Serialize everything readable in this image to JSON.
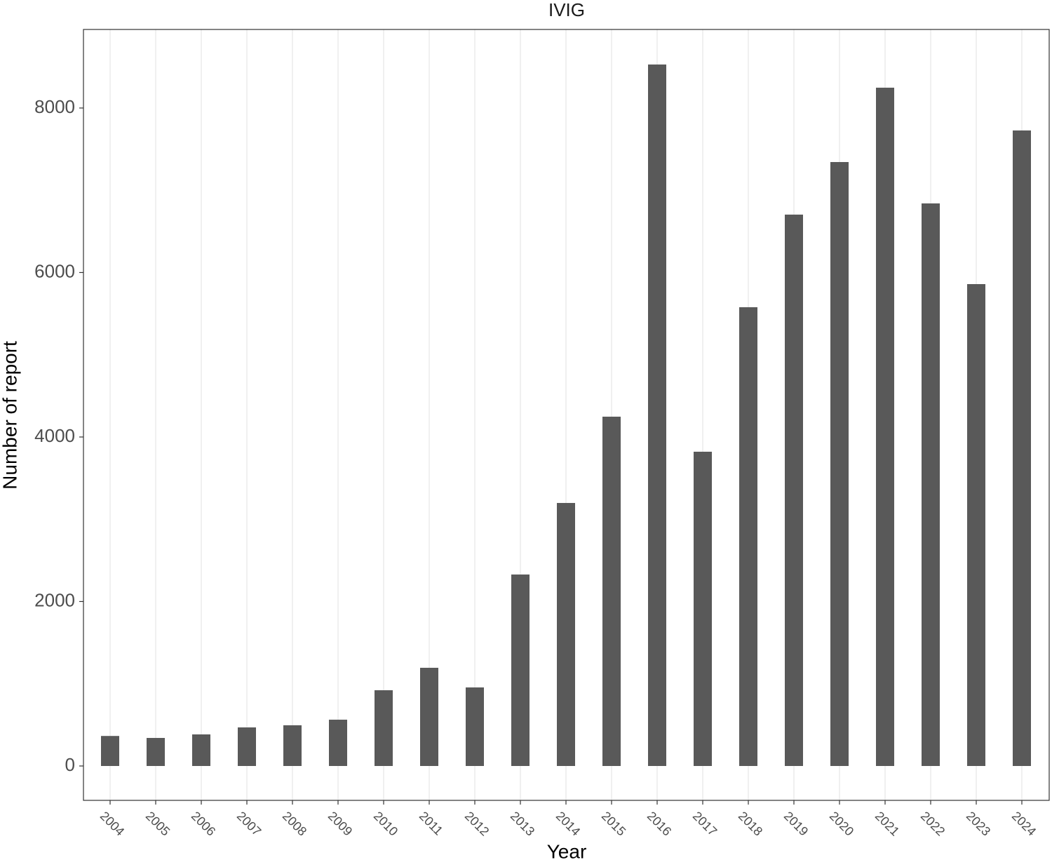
{
  "chart_data": {
    "type": "bar",
    "title": "IVIG",
    "x_label": "Year",
    "y_label": "Number of report",
    "categories": [
      "2004",
      "2005",
      "2006",
      "2007",
      "2008",
      "2009",
      "2010",
      "2011",
      "2012",
      "2013",
      "2014",
      "2015",
      "2016",
      "2017",
      "2018",
      "2019",
      "2020",
      "2021",
      "2022",
      "2023",
      "2024"
    ],
    "values": [
      365,
      341,
      384,
      469,
      495,
      563,
      921,
      1194,
      955,
      2328,
      3198,
      4247,
      8529,
      3821,
      5578,
      6704,
      7343,
      8247,
      6840,
      5859,
      7727
    ],
    "color": "#595959",
    "ylim": [
      -418,
      8955
    ],
    "yticks": [
      0,
      2000,
      4000,
      6000,
      8000
    ],
    "grid": "x"
  }
}
